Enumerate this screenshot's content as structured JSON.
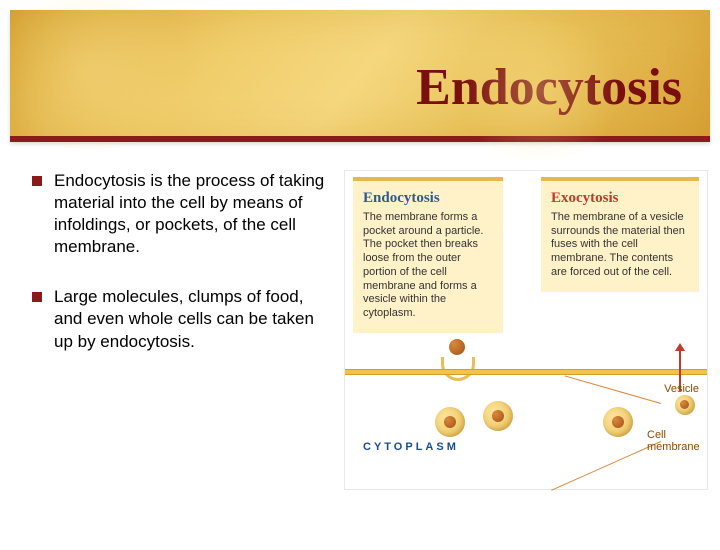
{
  "colors": {
    "banner_gradient": [
      "#d9a93a",
      "#e5bb52",
      "#f0cd6a",
      "#f5d77e",
      "#e9c35a",
      "#d8a236"
    ],
    "accent_rule": "#8b1a1a",
    "title_text": "#7a0f0f",
    "card_bg": "#fff2c9",
    "card_border": "#e6b84a",
    "endo_heading": "#2e5b8f",
    "exo_heading": "#c0392b",
    "membrane": "#f3c24a",
    "vesicle_fill": "#e9be54",
    "particle": "#a0531a",
    "leader_line": "#d9883a",
    "fig_label": "#8a4a00"
  },
  "title": "Endocytosis",
  "bullets": [
    "Endocytosis is the process of taking material into the cell by means of infoldings, or pockets, of the cell membrane.",
    "Large molecules, clumps of food, and even whole cells can be taken up by endocytosis."
  ],
  "figure": {
    "type": "infographic",
    "endo_card": {
      "heading": "Endocytosis",
      "body": "The membrane forms a pocket around a particle. The pocket then breaks loose from the outer portion of the cell membrane and forms a vesicle within the cytoplasm."
    },
    "exo_card": {
      "heading": "Exocytosis",
      "body": "The membrane of a vesicle surrounds the material then fuses with the cell membrane. The contents are forced out of the cell."
    },
    "labels": {
      "cytoplasm": "CYTOPLASM",
      "vesicle": "Vesicle",
      "cell_membrane": "Cell membrane"
    }
  }
}
